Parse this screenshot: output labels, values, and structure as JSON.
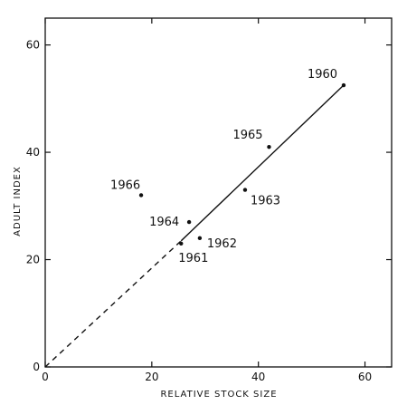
{
  "chart_data": {
    "type": "scatter",
    "title": "",
    "xlabel": "RELATIVE STOCK SIZE",
    "ylabel": "ADULT INDEX",
    "xlim": [
      0,
      65
    ],
    "ylim": [
      0,
      65
    ],
    "xticks": [
      0,
      20,
      40,
      60
    ],
    "yticks": [
      0,
      20,
      40,
      60
    ],
    "grid": false,
    "points": [
      {
        "label": "1960",
        "x": 56,
        "y": 52.5
      },
      {
        "label": "1965",
        "x": 42,
        "y": 41
      },
      {
        "label": "1963",
        "x": 37.5,
        "y": 33
      },
      {
        "label": "1966",
        "x": 18,
        "y": 32
      },
      {
        "label": "1964",
        "x": 27,
        "y": 27
      },
      {
        "label": "1962",
        "x": 29,
        "y": 24
      },
      {
        "label": "1961",
        "x": 25.5,
        "y": 23
      }
    ],
    "fit_line": {
      "solid": [
        [
          25.5,
          23.5
        ],
        [
          56,
          52.5
        ]
      ],
      "dashed": [
        [
          0,
          0
        ],
        [
          25.5,
          23.5
        ]
      ]
    }
  }
}
